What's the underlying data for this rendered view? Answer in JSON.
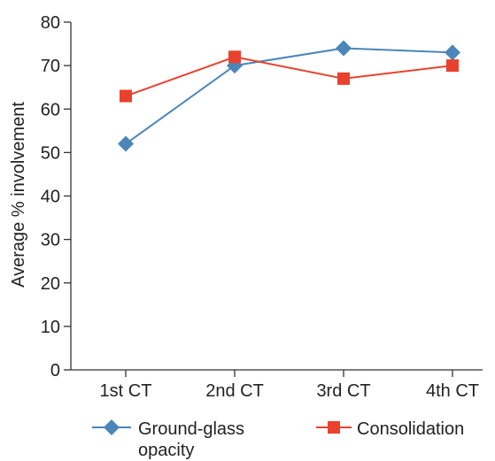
{
  "chart_data": {
    "type": "line",
    "categories": [
      "1st CT",
      "2nd CT",
      "3rd CT",
      "4th CT"
    ],
    "series": [
      {
        "name": "Ground-glass opacity",
        "name_lines": [
          "Ground-glass",
          "opacity"
        ],
        "marker": "diamond-icon",
        "color": "#4a86b8",
        "values": [
          52,
          70,
          74,
          73
        ]
      },
      {
        "name": "Consolidation",
        "name_lines": [
          "Consolidation"
        ],
        "marker": "square-icon",
        "color": "#e8422e",
        "values": [
          63,
          72,
          67,
          70
        ]
      }
    ],
    "title": "",
    "xlabel": "",
    "ylabel": "Average % involvement",
    "ylim": [
      0,
      80
    ],
    "yticks": [
      0,
      10,
      20,
      30,
      40,
      50,
      60,
      70,
      80
    ],
    "grid": false,
    "legend_position": "bottom"
  }
}
